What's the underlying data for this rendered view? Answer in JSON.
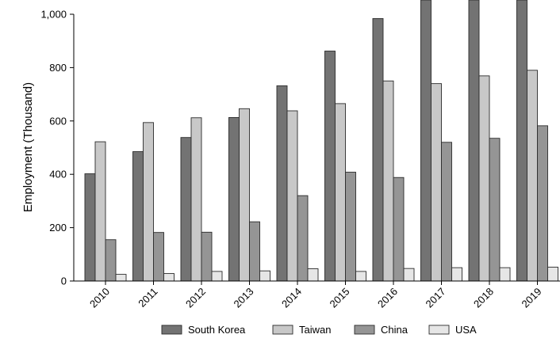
{
  "chart_data": {
    "type": "bar",
    "ylabel": "Employment (Thousand)",
    "xlabel": "",
    "title": "",
    "categories": [
      "2010",
      "2011",
      "2012",
      "2013",
      "2014",
      "2015",
      "2016",
      "2017",
      "2018",
      "2019"
    ],
    "series": [
      {
        "name": "South Korea",
        "color": "#737373",
        "values": [
          402,
          485,
          538,
          613,
          732,
          862,
          984,
          1075,
          1085,
          1090
        ]
      },
      {
        "name": "Taiwan",
        "color": "#c8c8c8",
        "values": [
          522,
          594,
          612,
          646,
          638,
          665,
          750,
          740,
          769,
          790
        ]
      },
      {
        "name": "China",
        "color": "#959595",
        "values": [
          155,
          182,
          183,
          222,
          320,
          408,
          388,
          520,
          535,
          582
        ]
      },
      {
        "name": "USA",
        "color": "#e6e6e6",
        "values": [
          25,
          28,
          36,
          38,
          46,
          36,
          47,
          50,
          50,
          52
        ]
      }
    ],
    "ylim": [
      0,
      1000
    ],
    "yticks": [
      "0",
      "200",
      "400",
      "600",
      "800",
      "1,000"
    ],
    "grid": false,
    "legend": "bottom"
  }
}
